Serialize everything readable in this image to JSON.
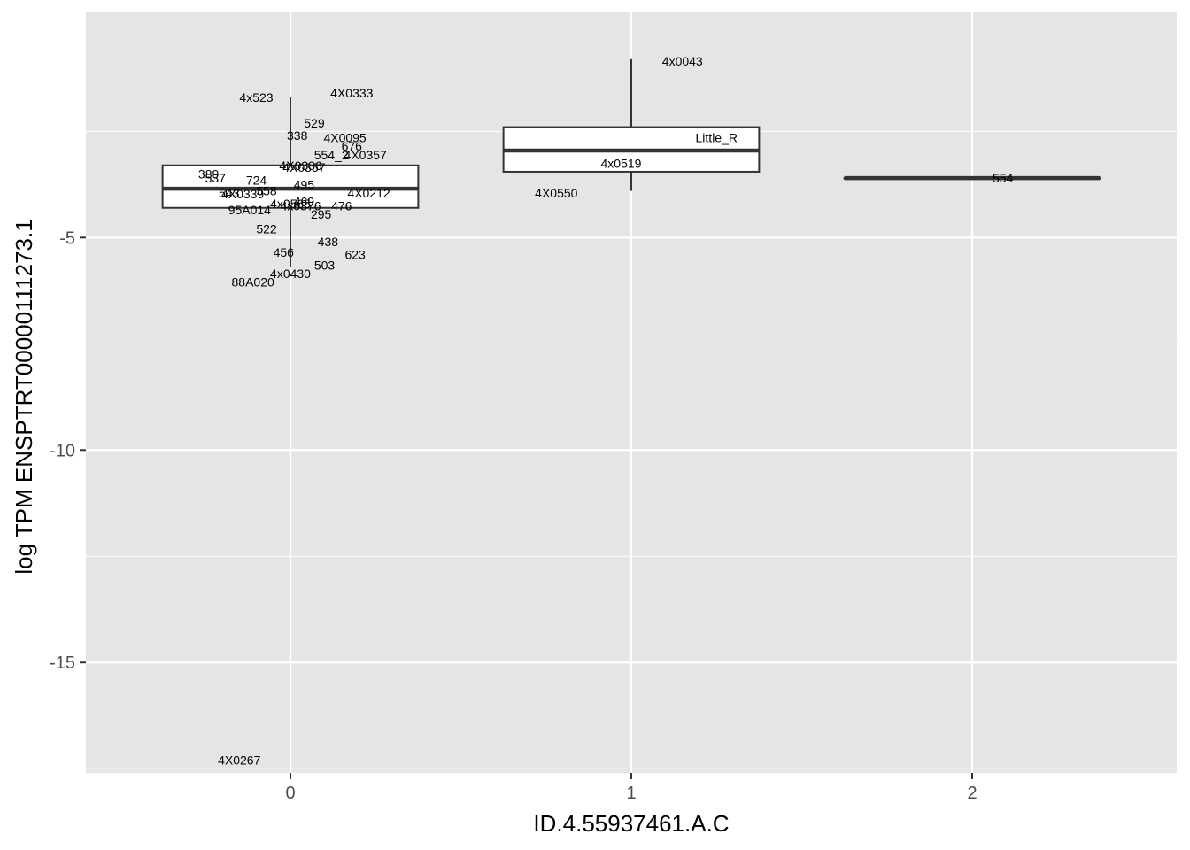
{
  "chart_data": {
    "type": "boxplot",
    "title": "",
    "xlabel": "ID.4.55937461.A.C",
    "ylabel": "log TPM ENSPTRT00000111273.1",
    "x_categories": [
      "0",
      "1",
      "2"
    ],
    "xlim": [
      -0.6,
      2.6
    ],
    "ylim": [
      -17.6,
      0.3
    ],
    "y_ticks": [
      -5,
      -10,
      -15
    ],
    "y_tick_labels": [
      "-5",
      "-10",
      "-15"
    ],
    "y_minor_ticks": [
      -2.5,
      -7.5,
      -12.5,
      -17.5
    ],
    "grid": true,
    "panel_background": "#e5e5e5",
    "grid_color": "#ffffff",
    "boxes": [
      {
        "x": 0,
        "whisker_low": -5.7,
        "q1": -4.3,
        "median": -3.85,
        "q3": -3.3,
        "whisker_high": -1.7
      },
      {
        "x": 1,
        "whisker_low": -3.9,
        "q1": -3.45,
        "median": -2.95,
        "q3": -2.4,
        "whisker_high": -0.8
      },
      {
        "x": 2,
        "whisker_low": -3.6,
        "q1": -3.6,
        "median": -3.6,
        "q3": -3.6,
        "whisker_high": -3.6
      }
    ],
    "labels": [
      {
        "text": "4x523",
        "x": -0.1,
        "y": -1.7
      },
      {
        "text": "4X0333",
        "x": 0.18,
        "y": -1.6
      },
      {
        "text": "529",
        "x": 0.07,
        "y": -2.3
      },
      {
        "text": "338",
        "x": 0.02,
        "y": -2.6
      },
      {
        "text": "4X0095",
        "x": 0.16,
        "y": -2.65
      },
      {
        "text": "676",
        "x": 0.18,
        "y": -2.85
      },
      {
        "text": "554_2",
        "x": 0.12,
        "y": -3.05
      },
      {
        "text": "4X0357",
        "x": 0.22,
        "y": -3.05
      },
      {
        "text": "4X0336",
        "x": 0.03,
        "y": -3.3
      },
      {
        "text": "4X0357",
        "x": 0.04,
        "y": -3.35
      },
      {
        "text": "389",
        "x": -0.24,
        "y": -3.5
      },
      {
        "text": "537",
        "x": -0.22,
        "y": -3.6
      },
      {
        "text": "724",
        "x": -0.1,
        "y": -3.65
      },
      {
        "text": "495",
        "x": 0.04,
        "y": -3.75
      },
      {
        "text": "4X0212",
        "x": 0.23,
        "y": -3.95
      },
      {
        "text": "558",
        "x": -0.07,
        "y": -3.9
      },
      {
        "text": "543",
        "x": -0.18,
        "y": -3.95
      },
      {
        "text": "4X0339",
        "x": -0.14,
        "y": -3.97
      },
      {
        "text": "4x0565",
        "x": 0.0,
        "y": -4.2
      },
      {
        "text": "469",
        "x": 0.04,
        "y": -4.15
      },
      {
        "text": "4x0376",
        "x": 0.03,
        "y": -4.25
      },
      {
        "text": "476",
        "x": 0.15,
        "y": -4.25
      },
      {
        "text": "95A014",
        "x": -0.12,
        "y": -4.35
      },
      {
        "text": "295",
        "x": 0.09,
        "y": -4.45
      },
      {
        "text": "522",
        "x": -0.07,
        "y": -4.8
      },
      {
        "text": "438",
        "x": 0.11,
        "y": -5.1
      },
      {
        "text": "456",
        "x": -0.02,
        "y": -5.35
      },
      {
        "text": "623",
        "x": 0.19,
        "y": -5.4
      },
      {
        "text": "503",
        "x": 0.1,
        "y": -5.65
      },
      {
        "text": "4x0430",
        "x": 0.0,
        "y": -5.85
      },
      {
        "text": "88A020",
        "x": -0.11,
        "y": -6.05
      },
      {
        "text": "4X0267",
        "x": -0.15,
        "y": -17.3
      },
      {
        "text": "4x0043",
        "x": 1.15,
        "y": -0.85
      },
      {
        "text": "Little_R",
        "x": 1.25,
        "y": -2.65
      },
      {
        "text": "4x0519",
        "x": 0.97,
        "y": -3.25
      },
      {
        "text": "4X0550",
        "x": 0.78,
        "y": -3.95
      },
      {
        "text": "554",
        "x": 2.09,
        "y": -3.6
      }
    ]
  }
}
